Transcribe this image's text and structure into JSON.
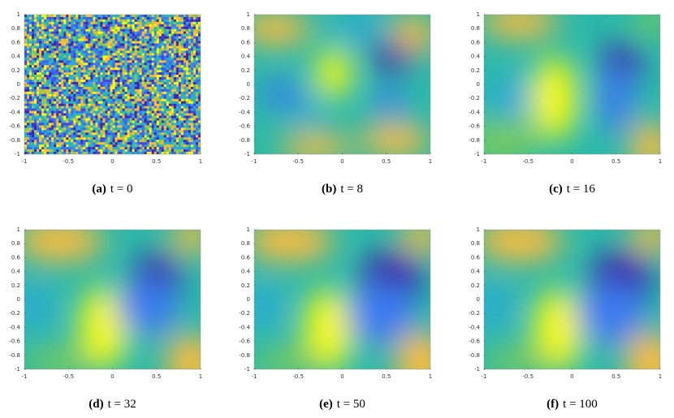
{
  "xticks": [
    -1,
    -0.5,
    0,
    0.5,
    1
  ],
  "yticks": [
    -1,
    -0.8,
    -0.6,
    -0.4,
    -0.2,
    0,
    0.2,
    0.4,
    0.6,
    0.8,
    1
  ],
  "panels": [
    {
      "label": "(a)",
      "caption": "t = 0"
    },
    {
      "label": "(b)",
      "caption": "t = 8"
    },
    {
      "label": "(c)",
      "caption": "t = 16"
    },
    {
      "label": "(d)",
      "caption": "t = 32"
    },
    {
      "label": "(e)",
      "caption": "t = 50"
    },
    {
      "label": "(f)",
      "caption": "t = 100"
    }
  ]
}
